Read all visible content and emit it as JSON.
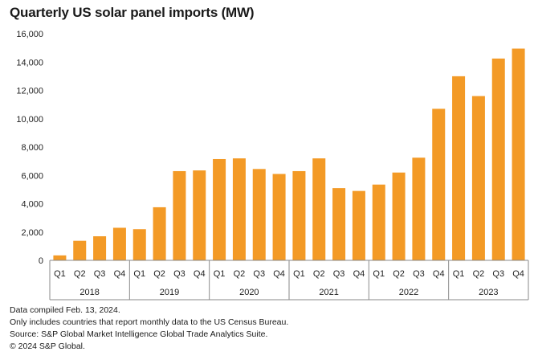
{
  "chart_data": {
    "type": "bar",
    "title": "Quarterly US solar panel imports (MW)",
    "xlabel": "",
    "ylabel": "",
    "ylim": [
      0,
      16000
    ],
    "yticks": [
      0,
      2000,
      4000,
      6000,
      8000,
      10000,
      12000,
      14000,
      16000
    ],
    "ytick_labels": [
      "0",
      "2,000",
      "4,000",
      "6,000",
      "8,000",
      "10,000",
      "12,000",
      "14,000",
      "16,000"
    ],
    "grid": false,
    "bar_color": "#F39A26",
    "years": [
      "2018",
      "2019",
      "2020",
      "2021",
      "2022",
      "2023"
    ],
    "quarters": [
      "Q1",
      "Q2",
      "Q3",
      "Q4"
    ],
    "categories": [
      "Q1 2018",
      "Q2 2018",
      "Q3 2018",
      "Q4 2018",
      "Q1 2019",
      "Q2 2019",
      "Q3 2019",
      "Q4 2019",
      "Q1 2020",
      "Q2 2020",
      "Q3 2020",
      "Q4 2020",
      "Q1 2021",
      "Q2 2021",
      "Q3 2021",
      "Q4 2021",
      "Q1 2022",
      "Q2 2022",
      "Q3 2022",
      "Q4 2022",
      "Q1 2023",
      "Q2 2023",
      "Q3 2023",
      "Q4 2023"
    ],
    "values": [
      350,
      1380,
      1700,
      2300,
      2200,
      3750,
      6300,
      6350,
      7150,
      7200,
      6450,
      6100,
      6300,
      7200,
      5100,
      4900,
      5350,
      6200,
      7250,
      10700,
      13000,
      11600,
      14250,
      14950
    ]
  },
  "notes": [
    "Data compiled Feb. 13, 2024.",
    "Only includes countries that report monthly data to the US Census Bureau.",
    "Source: S&P Global Market Intelligence Global Trade Analytics Suite.",
    "© 2024 S&P Global."
  ]
}
